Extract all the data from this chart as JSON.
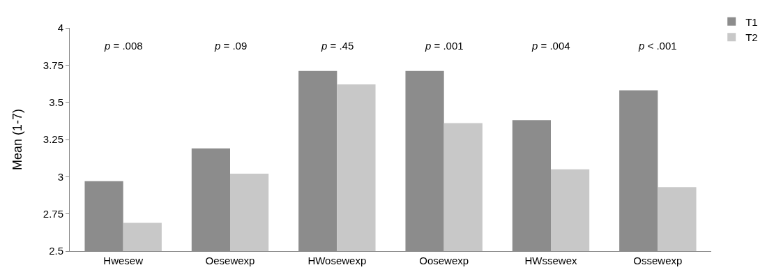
{
  "chart_data": {
    "type": "bar",
    "ylabel": "Mean (1-7)",
    "categories": [
      "Hwesew",
      "Oesewexp",
      "HWosewexp",
      "Oosewexp",
      "HWssewex",
      "Ossewexp"
    ],
    "series": [
      {
        "name": "T1",
        "color": "#8c8c8c",
        "values": [
          2.97,
          3.19,
          3.71,
          3.71,
          3.38,
          3.58
        ]
      },
      {
        "name": "T2",
        "color": "#c8c8c8",
        "values": [
          2.69,
          3.02,
          3.62,
          3.36,
          3.05,
          2.93
        ]
      }
    ],
    "ylim": [
      2.5,
      4
    ],
    "yticks": [
      2.5,
      2.75,
      3,
      3.25,
      3.5,
      3.75,
      4
    ],
    "grid": false,
    "legend": "top right",
    "annotations": [
      "p = .008",
      "p = .09",
      "p = .45",
      "p = .001",
      "p = .004",
      "p < .001"
    ]
  }
}
